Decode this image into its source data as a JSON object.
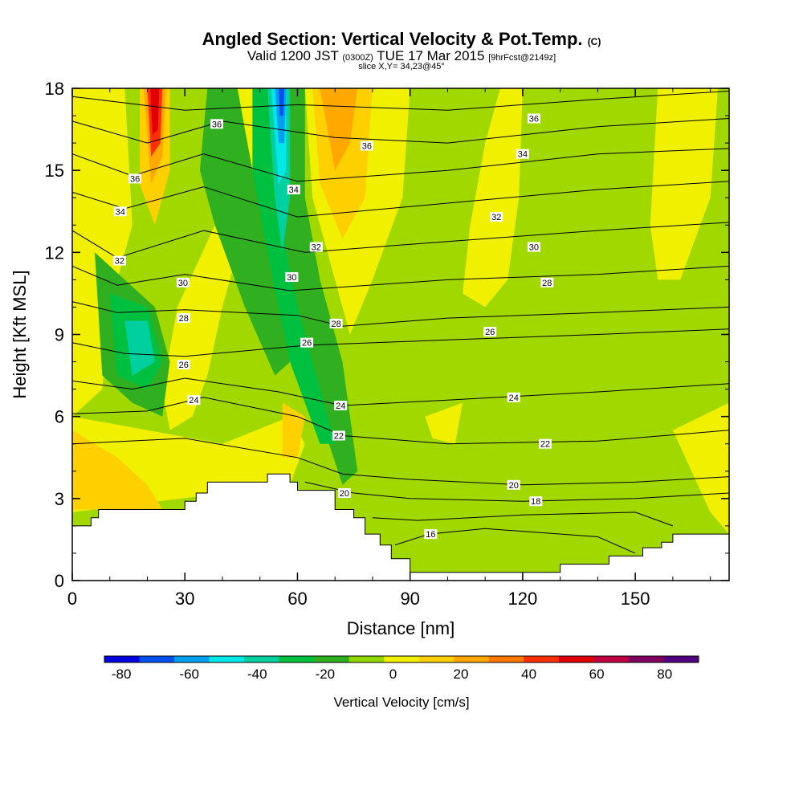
{
  "title": {
    "main": "Angled Section: Vertical Velocity & Pot.Temp.",
    "unit": "(C)"
  },
  "subtitle": {
    "valid": "Valid 1200 JST",
    "z": "(0300Z)",
    "date": "TUE 17 Mar 2015",
    "fcst": "[9hrFcst@2149z]"
  },
  "slice": "slice X,Y= 34,23@45°",
  "chart_data": {
    "type": "heatmap",
    "xlabel": "Distance [nm]",
    "ylabel": "Height [Kft MSL]",
    "xlim": [
      0,
      175
    ],
    "ylim": [
      0,
      18
    ],
    "x_ticks": [
      0,
      30,
      60,
      90,
      120,
      150
    ],
    "y_ticks": [
      0,
      3,
      6,
      9,
      12,
      15,
      18
    ],
    "colorbar": {
      "label": "Vertical Velocity [cm/s]",
      "ticks": [
        -80,
        -60,
        -40,
        -20,
        0,
        20,
        40,
        60,
        80
      ],
      "min": -85,
      "max": 90,
      "colors": [
        "#0000e0",
        "#0050f0",
        "#00a0f0",
        "#00e8e8",
        "#00d0a0",
        "#00c040",
        "#30b020",
        "#90d800",
        "#f0f000",
        "#ffd000",
        "#ffa800",
        "#ff7800",
        "#ff3000",
        "#e00000",
        "#c00040",
        "#800060",
        "#500080"
      ]
    },
    "terrain": [
      [
        0,
        2
      ],
      [
        5,
        2
      ],
      [
        5,
        2.3
      ],
      [
        7,
        2.3
      ],
      [
        7,
        2.6
      ],
      [
        20,
        2.6
      ],
      [
        30,
        2.6
      ],
      [
        30,
        2.9
      ],
      [
        33,
        2.9
      ],
      [
        33,
        3.2
      ],
      [
        36,
        3.2
      ],
      [
        36,
        3.6
      ],
      [
        52,
        3.6
      ],
      [
        52,
        3.9
      ],
      [
        58,
        3.9
      ],
      [
        58,
        3.6
      ],
      [
        60,
        3.6
      ],
      [
        60,
        3.3
      ],
      [
        70,
        3.3
      ],
      [
        70,
        2.6
      ],
      [
        75,
        2.6
      ],
      [
        75,
        2.3
      ],
      [
        78,
        2.3
      ],
      [
        78,
        1.7
      ],
      [
        82,
        1.7
      ],
      [
        82,
        1.3
      ],
      [
        85,
        1.3
      ],
      [
        85,
        0.8
      ],
      [
        90,
        0.8
      ],
      [
        90,
        0.3
      ],
      [
        130,
        0.3
      ],
      [
        130,
        0.6
      ],
      [
        143,
        0.6
      ],
      [
        143,
        0.9
      ],
      [
        152,
        0.9
      ],
      [
        152,
        1.2
      ],
      [
        157,
        1.2
      ],
      [
        157,
        1.4
      ],
      [
        160,
        1.4
      ],
      [
        160,
        1.7
      ],
      [
        175,
        1.7
      ]
    ],
    "pot_temp_labels": [
      {
        "v": "36",
        "x": 38.5,
        "y": 16.7
      },
      {
        "v": "36",
        "x": 78.5,
        "y": 15.9
      },
      {
        "v": "36",
        "x": 123,
        "y": 16.9
      },
      {
        "v": "36",
        "x": 16.7,
        "y": 14.7
      },
      {
        "v": "34",
        "x": 59,
        "y": 14.3
      },
      {
        "v": "34",
        "x": 120,
        "y": 15.6
      },
      {
        "v": "34",
        "x": 12.8,
        "y": 13.5
      },
      {
        "v": "32",
        "x": 65,
        "y": 12.2
      },
      {
        "v": "32",
        "x": 113,
        "y": 13.3
      },
      {
        "v": "32",
        "x": 12.6,
        "y": 11.7
      },
      {
        "v": "30",
        "x": 123,
        "y": 12.2
      },
      {
        "v": "30",
        "x": 58.5,
        "y": 11.1
      },
      {
        "v": "30",
        "x": 29.5,
        "y": 10.9
      },
      {
        "v": "28",
        "x": 126.5,
        "y": 10.9
      },
      {
        "v": "28",
        "x": 29.7,
        "y": 9.6
      },
      {
        "v": "28",
        "x": 70.3,
        "y": 9.4
      },
      {
        "v": "26",
        "x": 111.3,
        "y": 9.1
      },
      {
        "v": "26",
        "x": 62.5,
        "y": 8.7
      },
      {
        "v": "26",
        "x": 29.7,
        "y": 7.9
      },
      {
        "v": "24",
        "x": 32.4,
        "y": 6.6
      },
      {
        "v": "24",
        "x": 71.5,
        "y": 6.4
      },
      {
        "v": "24",
        "x": 117.6,
        "y": 6.7
      },
      {
        "v": "22",
        "x": 71,
        "y": 5.3
      },
      {
        "v": "22",
        "x": 126,
        "y": 5.0
      },
      {
        "v": "20",
        "x": 72.5,
        "y": 3.2
      },
      {
        "v": "20",
        "x": 117.6,
        "y": 3.5
      },
      {
        "v": "18",
        "x": 123.5,
        "y": 2.9
      },
      {
        "v": "16",
        "x": 95.5,
        "y": 1.7
      }
    ]
  }
}
